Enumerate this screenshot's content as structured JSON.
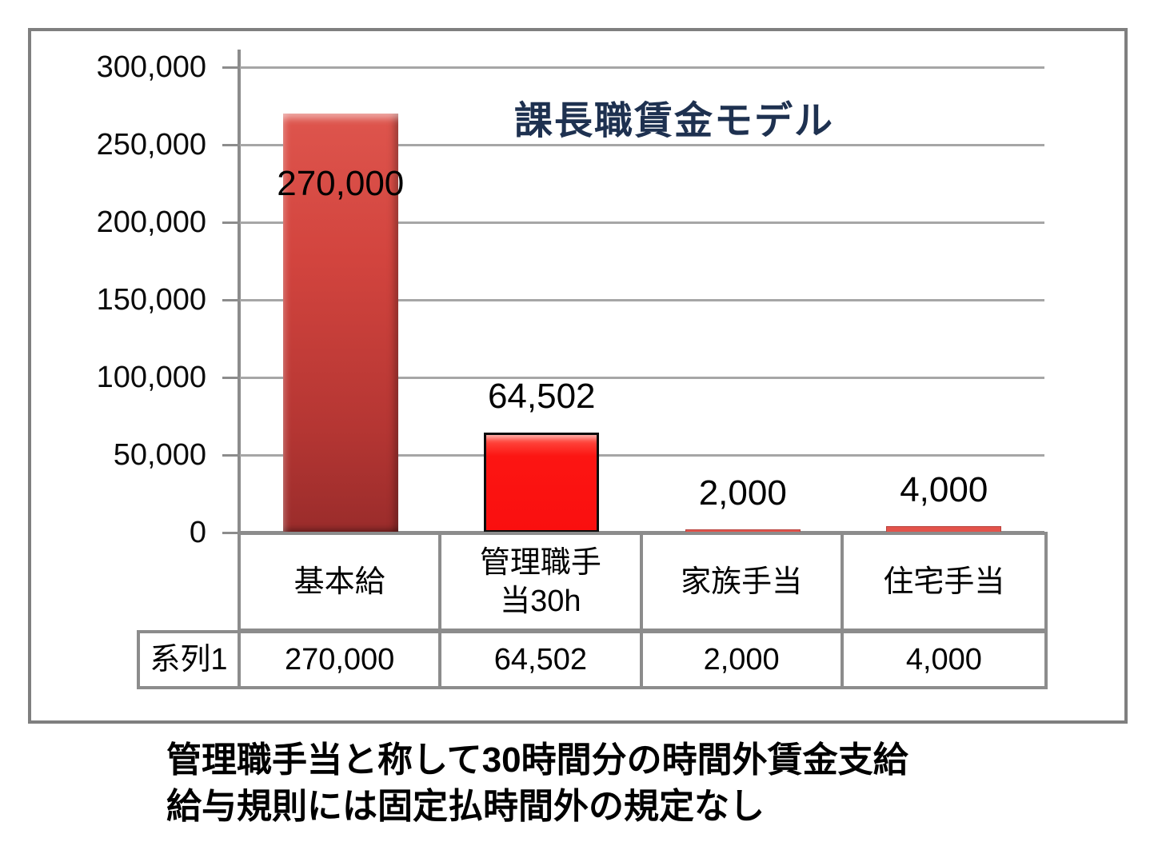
{
  "chart_data": {
    "type": "bar",
    "title": "課長職賃金モデル",
    "categories": [
      "基本給",
      "管理職手当30h",
      "家族手当",
      "住宅手当"
    ],
    "category_display": [
      "基本給",
      "管理職手\n当30h",
      "家族手当",
      "住宅手当"
    ],
    "series": [
      {
        "name": "系列1",
        "values": [
          270000,
          64502,
          2000,
          4000
        ]
      }
    ],
    "value_labels": [
      "270,000",
      "64,502",
      "2,000",
      "4,000"
    ],
    "y_ticks": [
      0,
      50000,
      100000,
      150000,
      200000,
      250000,
      300000
    ],
    "y_tick_labels": [
      "0",
      "50,000",
      "100,000",
      "150,000",
      "200,000",
      "250,000",
      "300,000"
    ],
    "ylim": [
      0,
      300000
    ],
    "xlabel": "",
    "ylabel": "",
    "grid": true,
    "legend_position": "none (series name shown in data table)",
    "data_table_shown": true,
    "colors": {
      "bar_main_top": "#DE554D",
      "bar_main_bottom": "#9A2C2B",
      "bar_highlight_red": "#FA0F0F",
      "bar_small": "#E3534B",
      "title": "#1E3150",
      "grid": "#A6A6A6",
      "axis": "#8C8C8C",
      "frame": "#7F7F7F",
      "table_border": "#8C8C8C"
    }
  },
  "caption": {
    "line1": "管理職手当と称して30時間分の時間外賃金支給",
    "line2": "給与規則には固定払時間外の規定なし"
  }
}
